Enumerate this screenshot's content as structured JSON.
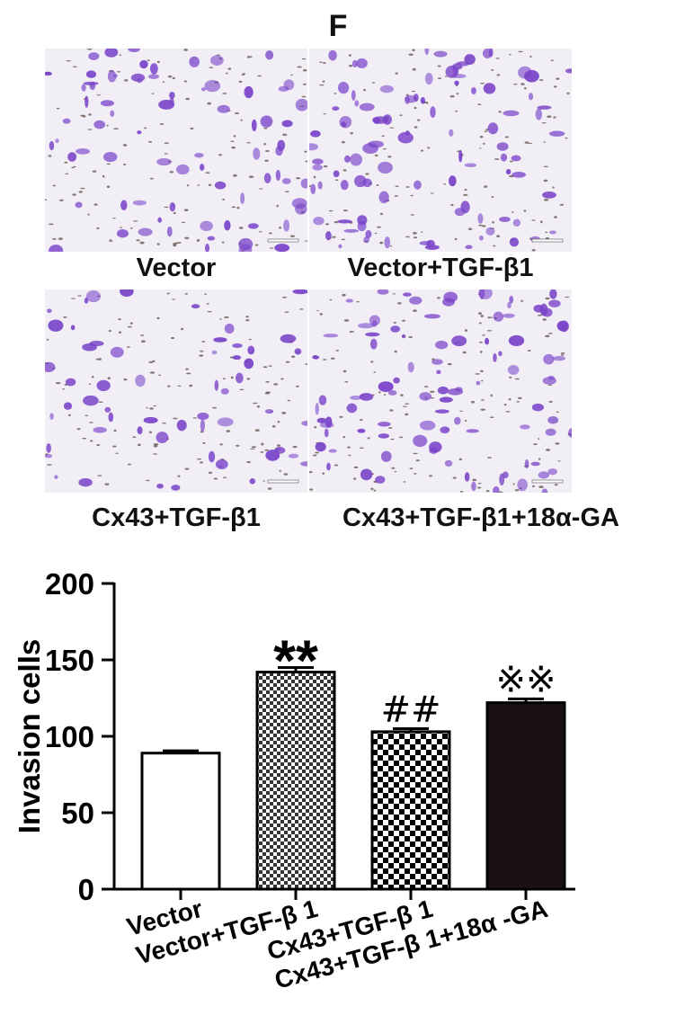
{
  "figure": {
    "panel_letter": "F",
    "images": [
      {
        "caption": "Vector",
        "stain_density": "medium"
      },
      {
        "caption": "Vector+TGF-β1",
        "stain_density": "high"
      },
      {
        "caption": "Cx43+TGF-β1",
        "stain_density": "low"
      },
      {
        "caption": "Cx43+TGF-β1+18α-GA",
        "stain_density": "high"
      }
    ],
    "stain_color": "#7a44c9",
    "background_color": "#f1eef6"
  },
  "chart_data": {
    "type": "bar",
    "ylabel": "Invasion cells",
    "ylim": [
      0,
      200
    ],
    "yticks": [
      0,
      50,
      100,
      150,
      200
    ],
    "categories": [
      "Vector",
      "Vector+TGF-β 1",
      "Cx43+TGF-β 1",
      "Cx43+TGF-β 1+18α -GA"
    ],
    "values": [
      89,
      142,
      103,
      122
    ],
    "errors": [
      1.5,
      3,
      2,
      2.5
    ],
    "fills": [
      "white",
      "fine-checker",
      "coarse-checker",
      "solid-black"
    ],
    "annotations": [
      "",
      "**",
      "##",
      "※※"
    ]
  }
}
